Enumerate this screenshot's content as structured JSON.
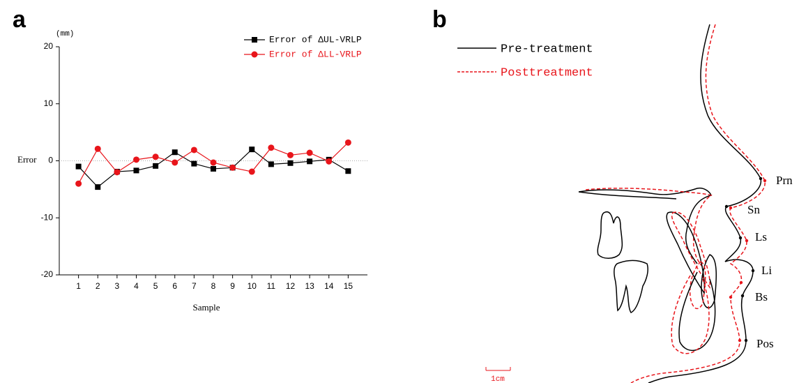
{
  "panel_labels": [
    "a",
    "b"
  ],
  "chart_data": {
    "type": "line",
    "y_unit": "(mm)",
    "ylabel": "Error",
    "xlabel": "Sample",
    "x": [
      1,
      2,
      3,
      4,
      5,
      6,
      7,
      8,
      9,
      10,
      11,
      12,
      13,
      14,
      15
    ],
    "xlim": [
      0,
      16
    ],
    "xticks": [
      1,
      2,
      3,
      4,
      5,
      6,
      7,
      8,
      9,
      10,
      11,
      12,
      13,
      14,
      15
    ],
    "ylim": [
      -20,
      20
    ],
    "yticks": [
      -20,
      -10,
      0,
      10,
      20
    ],
    "zero_line": true,
    "legend": "top-right",
    "series": [
      {
        "name": "Error of ΔUL-VRLP",
        "color": "#000000",
        "marker": "square",
        "values": [
          -1,
          -4.6,
          -1.9,
          -1.7,
          -0.9,
          1.5,
          -0.5,
          -1.4,
          -1.2,
          2,
          -0.6,
          -0.4,
          -0.1,
          0.2,
          -1.8
        ]
      },
      {
        "name": "Error of ΔLL-VRLP",
        "color": "#e8151b",
        "marker": "circle",
        "values": [
          -4,
          2.1,
          -2,
          0.2,
          0.7,
          -0.3,
          1.9,
          -0.3,
          -1.2,
          -1.9,
          2.3,
          1,
          1.4,
          -0.1,
          3.2
        ]
      }
    ]
  },
  "diagram": {
    "legend": [
      "Pre-treatment",
      "Posttreatment"
    ],
    "landmarks": [
      "Prn",
      "Sn",
      "Ls",
      "Li",
      "Bs",
      "Pos"
    ],
    "scale": "1cm"
  }
}
